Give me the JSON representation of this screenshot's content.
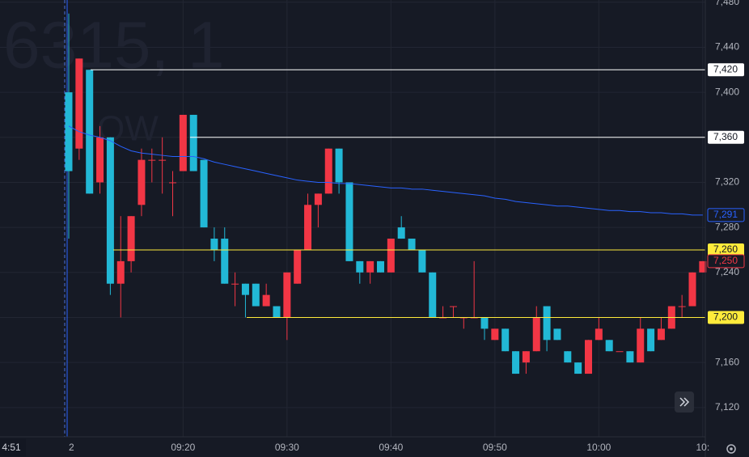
{
  "chart_data": {
    "type": "candlestick",
    "watermark": [
      "6315, 1",
      "OW"
    ],
    "cursor_time_label": "4:51",
    "categories": [
      "2",
      null,
      null,
      null,
      null,
      null,
      null,
      null,
      null,
      null,
      null,
      "09:20",
      null,
      null,
      null,
      null,
      null,
      null,
      null,
      null,
      null,
      "09:30",
      null,
      null,
      null,
      null,
      null,
      null,
      null,
      null,
      null,
      "09:40",
      null,
      null,
      null,
      null,
      null,
      null,
      null,
      null,
      null,
      "09:50",
      null,
      null,
      null,
      null,
      null,
      null,
      null,
      null,
      null,
      "10:00",
      null,
      null,
      null,
      null,
      null,
      null,
      null,
      null,
      null,
      "10:"
    ],
    "open": [
      7400,
      7350,
      7420,
      7320,
      7360,
      7230,
      7250,
      7300,
      7340,
      7340,
      7320,
      7330,
      7380,
      7340,
      7270,
      7270,
      7230,
      7230,
      7230,
      7210,
      7210,
      7200,
      7230,
      7260,
      7300,
      7310,
      7350,
      7320,
      7250,
      7240,
      7250,
      7240,
      7280,
      7270,
      7260,
      7240,
      7200,
      7210,
      7200,
      7200,
      7200,
      7180,
      7190,
      7170,
      7160,
      7170,
      7210,
      7190,
      7170,
      7160,
      7150,
      7180,
      7180,
      7170,
      7170,
      7160,
      7190,
      7180,
      7190,
      7210,
      7210,
      7240
    ],
    "high": [
      7470,
      7430,
      7420,
      7370,
      7360,
      7290,
      7290,
      7350,
      7350,
      7360,
      7330,
      7380,
      7380,
      7340,
      7280,
      7280,
      7240,
      7230,
      7230,
      7230,
      7210,
      7240,
      7260,
      7310,
      7310,
      7350,
      7350,
      7320,
      7250,
      7250,
      7250,
      7270,
      7290,
      7270,
      7260,
      7240,
      7210,
      7210,
      7200,
      7250,
      7200,
      7190,
      7190,
      7170,
      7170,
      7210,
      7210,
      7190,
      7170,
      7160,
      7180,
      7200,
      7180,
      7170,
      7170,
      7200,
      7190,
      7200,
      7210,
      7220,
      7240,
      7250
    ],
    "low": [
      7270,
      7340,
      7310,
      7310,
      7220,
      7200,
      7240,
      7290,
      7320,
      7310,
      7290,
      7330,
      7330,
      7280,
      7250,
      7230,
      7210,
      7200,
      7210,
      7210,
      7200,
      7180,
      7230,
      7260,
      7280,
      7310,
      7310,
      7250,
      7230,
      7230,
      7240,
      7240,
      7270,
      7260,
      7240,
      7200,
      7200,
      7200,
      7190,
      7200,
      7180,
      7180,
      7170,
      7150,
      7150,
      7170,
      7170,
      7180,
      7160,
      7150,
      7150,
      7180,
      7170,
      7170,
      7160,
      7160,
      7170,
      7180,
      7190,
      7200,
      7210,
      7240
    ],
    "close": [
      7330,
      7430,
      7310,
      7360,
      7230,
      7250,
      7290,
      7340,
      7340,
      7340,
      7320,
      7380,
      7330,
      7280,
      7260,
      7230,
      7230,
      7220,
      7210,
      7220,
      7200,
      7240,
      7260,
      7300,
      7310,
      7350,
      7320,
      7250,
      7240,
      7250,
      7240,
      7270,
      7270,
      7260,
      7240,
      7200,
      7200,
      7210,
      7200,
      7200,
      7190,
      7190,
      7170,
      7150,
      7170,
      7200,
      7180,
      7180,
      7160,
      7150,
      7180,
      7190,
      7170,
      7170,
      7160,
      7190,
      7170,
      7190,
      7210,
      7210,
      7240,
      7250
    ],
    "up_color": "#f23645",
    "down_color": "#22b8d6",
    "ma": {
      "color": "#2962ff",
      "label": "7,291",
      "values": [
        7370,
        7365,
        7362,
        7360,
        7357,
        7352,
        7348,
        7346,
        7345,
        7344,
        7343,
        7343,
        7343,
        7341,
        7338,
        7336,
        7334,
        7332,
        7330,
        7328,
        7326,
        7324,
        7322,
        7321,
        7320,
        7320,
        7319,
        7319,
        7318,
        7317,
        7316,
        7315,
        7315,
        7314,
        7314,
        7313,
        7312,
        7311,
        7310,
        7309,
        7308,
        7306,
        7305,
        7303,
        7302,
        7301,
        7300,
        7299,
        7299,
        7298,
        7297,
        7296,
        7295,
        7295,
        7294,
        7294,
        7293,
        7293,
        7292,
        7292,
        7291,
        7291
      ]
    },
    "levels": [
      {
        "value": 7420,
        "label": "7,420",
        "color": "#ffffff"
      },
      {
        "value": 7360,
        "label": "7,360",
        "color": "#ffffff"
      },
      {
        "value": 7260,
        "label": "7,260",
        "color": "#ffeb3b"
      },
      {
        "value": 7200,
        "label": "7,200",
        "color": "#ffeb3b"
      }
    ],
    "last_price_label": "7,250",
    "ylim": [
      7094,
      7482
    ],
    "yticks": [
      {
        "value": 7120,
        "label": "7,120"
      },
      {
        "value": 7160,
        "label": "7,160"
      },
      {
        "value": 7200,
        "label": "7,200"
      },
      {
        "value": 7240,
        "label": "7,240"
      },
      {
        "value": 7280,
        "label": "7,280"
      },
      {
        "value": 7320,
        "label": "7,320"
      },
      {
        "value": 7360,
        "label": "7,360"
      },
      {
        "value": 7400,
        "label": "7,400"
      },
      {
        "value": 7440,
        "label": "7,440"
      },
      {
        "value": 7480,
        "label": "7,480"
      }
    ],
    "grid": true
  }
}
